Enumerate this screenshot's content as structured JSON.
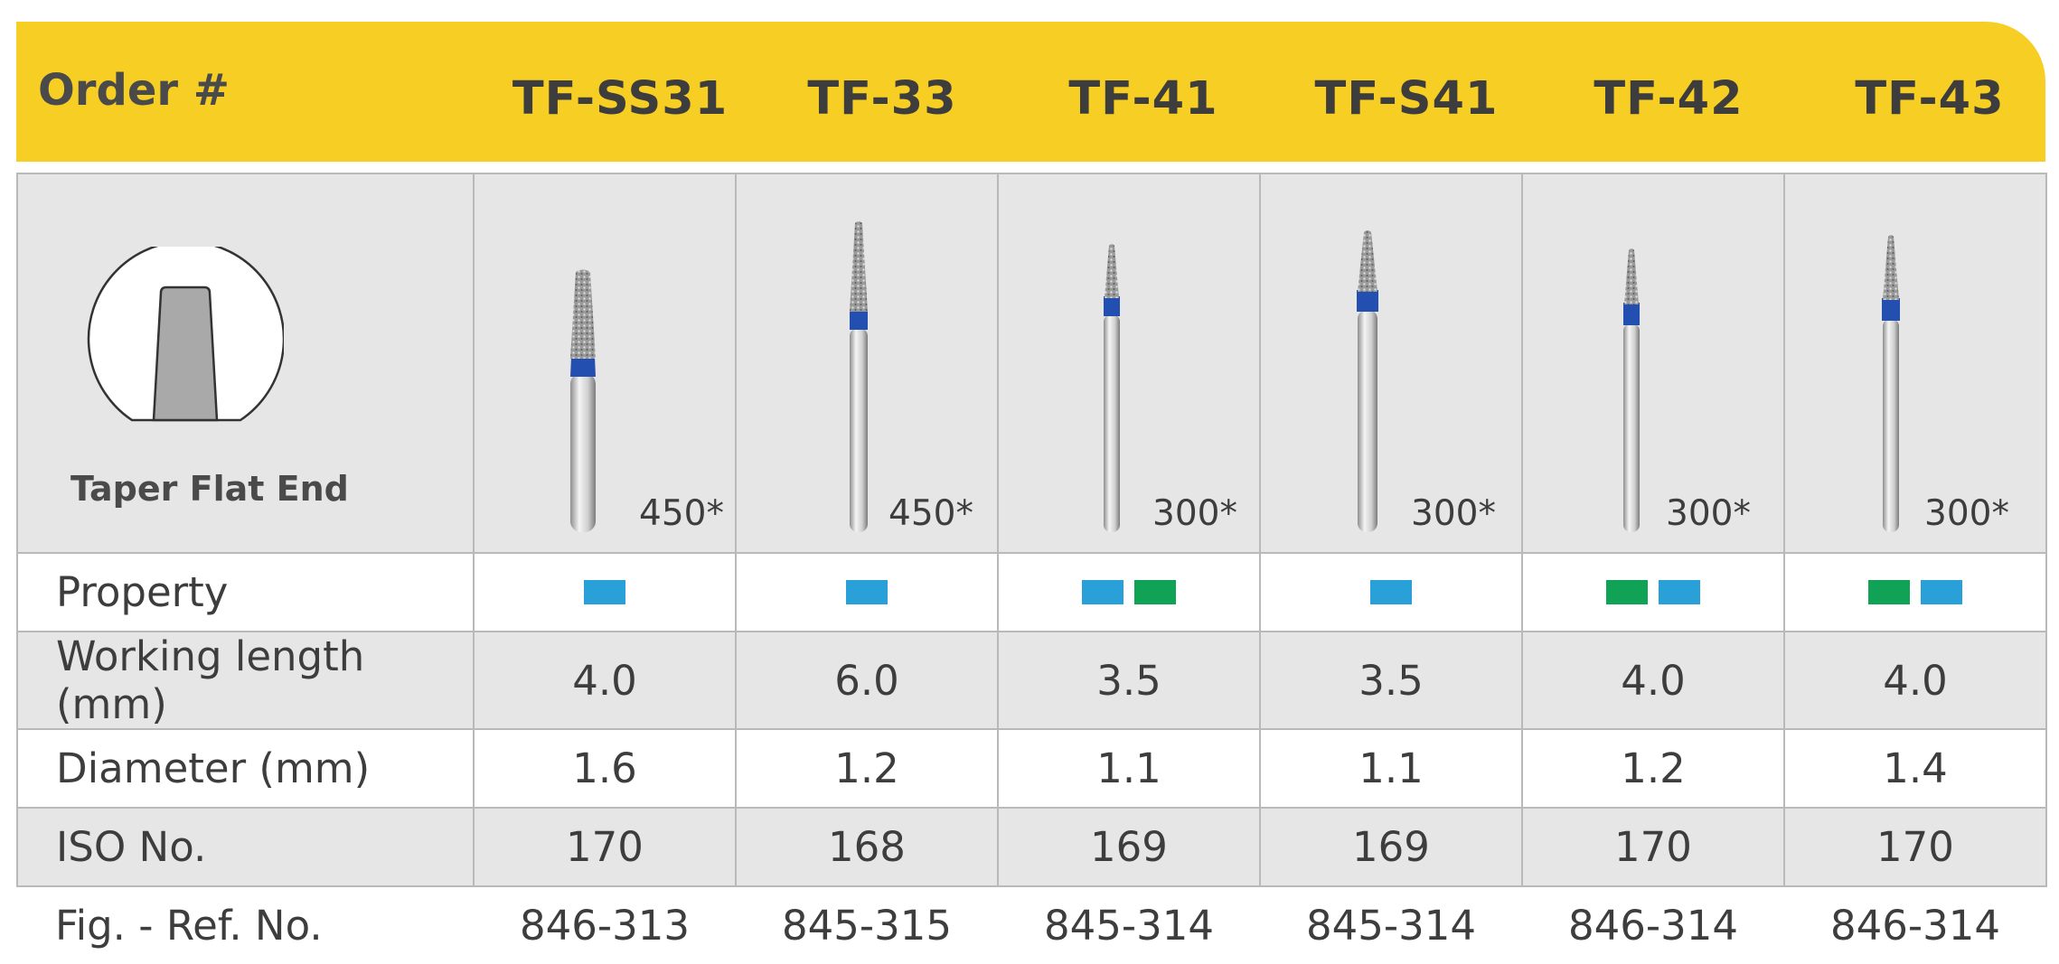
{
  "header": {
    "label": "Order #",
    "codes": [
      "TF-SS31",
      "TF-33",
      "TF-41",
      "TF-S41",
      "TF-42",
      "TF-43"
    ]
  },
  "shape": {
    "caption": "Taper Flat End"
  },
  "rpm": [
    "450*",
    "450*",
    "300*",
    "300*",
    "300*",
    "300*"
  ],
  "property": {
    "label": "Property",
    "swatches": [
      [
        "blue"
      ],
      [
        "blue"
      ],
      [
        "blue",
        "green"
      ],
      [
        "blue"
      ],
      [
        "green",
        "blue"
      ],
      [
        "green",
        "blue"
      ]
    ]
  },
  "rows": {
    "working_length": {
      "label": "Working length (mm)",
      "values": [
        "4.0",
        "6.0",
        "3.5",
        "3.5",
        "4.0",
        "4.0"
      ]
    },
    "diameter": {
      "label": "Diameter (mm)",
      "values": [
        "1.6",
        "1.2",
        "1.1",
        "1.1",
        "1.2",
        "1.4"
      ]
    },
    "iso": {
      "label": "ISO No.",
      "values": [
        "170",
        "168",
        "169",
        "169",
        "170",
        "170"
      ]
    },
    "ref": {
      "label": "Fig. - Ref. No.",
      "values": [
        "846-313",
        "845-315",
        "845-314",
        "845-314",
        "846-314",
        "846-314"
      ]
    }
  },
  "colors": {
    "header_band": "#f7ce24",
    "property_blue": "#2aa0d8",
    "property_green": "#10a356",
    "bur_collar": "#2350b0"
  }
}
